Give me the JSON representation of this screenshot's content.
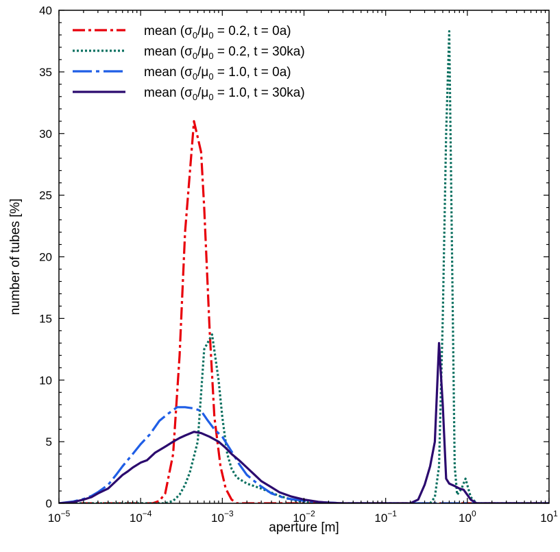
{
  "chart_data": {
    "type": "line",
    "title": "",
    "xlabel": "aperture [m]",
    "ylabel": "number of tubes [%]",
    "xscale": "log",
    "xlim": [
      1e-05,
      10
    ],
    "ylim": [
      0,
      40
    ],
    "grid": false,
    "legend_position": "top-left",
    "x_ticks": [
      {
        "value": 1e-05,
        "base": "10",
        "exp": "−5"
      },
      {
        "value": 0.0001,
        "base": "10",
        "exp": "−4"
      },
      {
        "value": 0.001,
        "base": "10",
        "exp": "−3"
      },
      {
        "value": 0.01,
        "base": "10",
        "exp": "−2"
      },
      {
        "value": 0.1,
        "base": "10",
        "exp": "−1"
      },
      {
        "value": 1,
        "base": "10",
        "exp": "0"
      },
      {
        "value": 10,
        "base": "10",
        "exp": "1"
      }
    ],
    "y_ticks": [
      "0",
      "5",
      "10",
      "15",
      "20",
      "25",
      "30",
      "35",
      "40"
    ],
    "series": [
      {
        "name": "mean (σ0/μ0 = 0.2, t = 0a)",
        "legend": {
          "pre": "mean (σ",
          "sub1": "0",
          "mid": "/μ",
          "sub2": "0",
          "post": " = 0.2, t = 0a)"
        },
        "color": "#e8000b",
        "dash": "dashdot",
        "points": [
          [
            1e-05,
            0
          ],
          [
            0.00014,
            0
          ],
          [
            0.00017,
            0.2
          ],
          [
            0.0002,
            0.8
          ],
          [
            0.00025,
            4
          ],
          [
            0.0003,
            12
          ],
          [
            0.00035,
            22
          ],
          [
            0.00045,
            31
          ],
          [
            0.00055,
            28.5
          ],
          [
            0.0006,
            24
          ],
          [
            0.0007,
            14
          ],
          [
            0.0008,
            7
          ],
          [
            0.00095,
            3
          ],
          [
            0.0011,
            1.2
          ],
          [
            0.0013,
            0.3
          ],
          [
            0.0015,
            0
          ],
          [
            10,
            0
          ]
        ]
      },
      {
        "name": "mean (σ0/μ0 = 0.2, t = 30ka)",
        "legend": {
          "pre": "mean (σ",
          "sub1": "0",
          "mid": "/μ",
          "sub2": "0",
          "post": " = 0.2, t = 30ka)"
        },
        "color": "#0b7060",
        "dash": "dotted",
        "points": [
          [
            1e-05,
            0
          ],
          [
            0.0002,
            0
          ],
          [
            0.00025,
            0.2
          ],
          [
            0.0003,
            0.7
          ],
          [
            0.00035,
            1.5
          ],
          [
            0.0004,
            2.5
          ],
          [
            0.0005,
            5
          ],
          [
            0.0006,
            12.5
          ],
          [
            0.00075,
            13.7
          ],
          [
            0.0009,
            10
          ],
          [
            0.001,
            7
          ],
          [
            0.00115,
            4
          ],
          [
            0.0013,
            2.8
          ],
          [
            0.0015,
            2.1
          ],
          [
            0.002,
            1.6
          ],
          [
            0.003,
            1.2
          ],
          [
            0.005,
            0.6
          ],
          [
            0.008,
            0.2
          ],
          [
            0.012,
            0.05
          ],
          [
            0.02,
            0
          ],
          [
            0.35,
            0
          ],
          [
            0.4,
            0.5
          ],
          [
            0.45,
            3
          ],
          [
            0.5,
            15
          ],
          [
            0.55,
            30
          ],
          [
            0.6,
            38.3
          ],
          [
            0.65,
            20
          ],
          [
            0.7,
            3
          ],
          [
            0.75,
            0.7
          ],
          [
            0.85,
            1.2
          ],
          [
            0.95,
            2
          ],
          [
            1.1,
            0.5
          ],
          [
            1.3,
            0
          ],
          [
            10,
            0
          ]
        ]
      },
      {
        "name": "mean (σ0/μ0 = 1.0, t = 0a)",
        "legend": {
          "pre": "mean (σ",
          "sub1": "0",
          "mid": "/μ",
          "sub2": "0",
          "post": " = 1.0, t = 0a)"
        },
        "color": "#1f5ee6",
        "dash": "longdashdot",
        "points": [
          [
            1e-05,
            0
          ],
          [
            1.5e-05,
            0.15
          ],
          [
            2e-05,
            0.35
          ],
          [
            2.5e-05,
            0.6
          ],
          [
            3e-05,
            0.9
          ],
          [
            4e-05,
            1.5
          ],
          [
            5e-05,
            2.3
          ],
          [
            6e-05,
            3
          ],
          [
            8e-05,
            4
          ],
          [
            0.0001,
            4.8
          ],
          [
            0.00013,
            5.6
          ],
          [
            0.00017,
            6.7
          ],
          [
            0.00022,
            7.3
          ],
          [
            0.00028,
            7.8
          ],
          [
            0.00035,
            7.8
          ],
          [
            0.00045,
            7.7
          ],
          [
            0.00055,
            7.5
          ],
          [
            0.00065,
            6.8
          ],
          [
            0.0008,
            6
          ],
          [
            0.001,
            5.4
          ],
          [
            0.0013,
            4.2
          ],
          [
            0.0016,
            3.2
          ],
          [
            0.002,
            2.3
          ],
          [
            0.0028,
            1.5
          ],
          [
            0.004,
            0.8
          ],
          [
            0.006,
            0.4
          ],
          [
            0.01,
            0.2
          ],
          [
            0.015,
            0.1
          ],
          [
            0.03,
            0
          ],
          [
            0.3,
            0
          ],
          [
            0.5,
            0
          ],
          [
            1,
            0
          ],
          [
            10,
            0
          ]
        ]
      },
      {
        "name": "mean (σ0/μ0 = 1.0, t = 30ka)",
        "legend": {
          "pre": "mean (σ",
          "sub1": "0",
          "mid": "/μ",
          "sub2": "0",
          "post": " = 1.0, t = 30ka)"
        },
        "color": "#2b0a6e",
        "dash": "solid",
        "points": [
          [
            1e-05,
            0
          ],
          [
            1.5e-05,
            0.1
          ],
          [
            2e-05,
            0.3
          ],
          [
            2.5e-05,
            0.5
          ],
          [
            3e-05,
            0.8
          ],
          [
            4e-05,
            1.2
          ],
          [
            5e-05,
            1.8
          ],
          [
            6e-05,
            2.3
          ],
          [
            7e-05,
            2.6
          ],
          [
            8e-05,
            2.9
          ],
          [
            0.0001,
            3.3
          ],
          [
            0.00012,
            3.5
          ],
          [
            0.00015,
            4.1
          ],
          [
            0.0002,
            4.6
          ],
          [
            0.00025,
            5
          ],
          [
            0.0003,
            5.3
          ],
          [
            0.00035,
            5.5
          ],
          [
            0.00045,
            5.8
          ],
          [
            0.00055,
            5.7
          ],
          [
            0.0007,
            5.4
          ],
          [
            0.0009,
            5
          ],
          [
            0.0011,
            4.5
          ],
          [
            0.0013,
            4
          ],
          [
            0.0016,
            3.5
          ],
          [
            0.002,
            2.9
          ],
          [
            0.0025,
            2.3
          ],
          [
            0.003,
            1.8
          ],
          [
            0.004,
            1.3
          ],
          [
            0.005,
            0.9
          ],
          [
            0.007,
            0.55
          ],
          [
            0.01,
            0.3
          ],
          [
            0.015,
            0.12
          ],
          [
            0.02,
            0.05
          ],
          [
            0.03,
            0
          ],
          [
            0.2,
            0
          ],
          [
            0.25,
            0.3
          ],
          [
            0.3,
            1.5
          ],
          [
            0.35,
            3
          ],
          [
            0.4,
            5
          ],
          [
            0.45,
            13
          ],
          [
            0.5,
            8
          ],
          [
            0.55,
            2
          ],
          [
            0.6,
            1.6
          ],
          [
            0.7,
            1.4
          ],
          [
            0.8,
            1.2
          ],
          [
            0.9,
            1.1
          ],
          [
            1.1,
            0.3
          ],
          [
            1.3,
            0
          ],
          [
            10,
            0
          ]
        ]
      }
    ]
  }
}
